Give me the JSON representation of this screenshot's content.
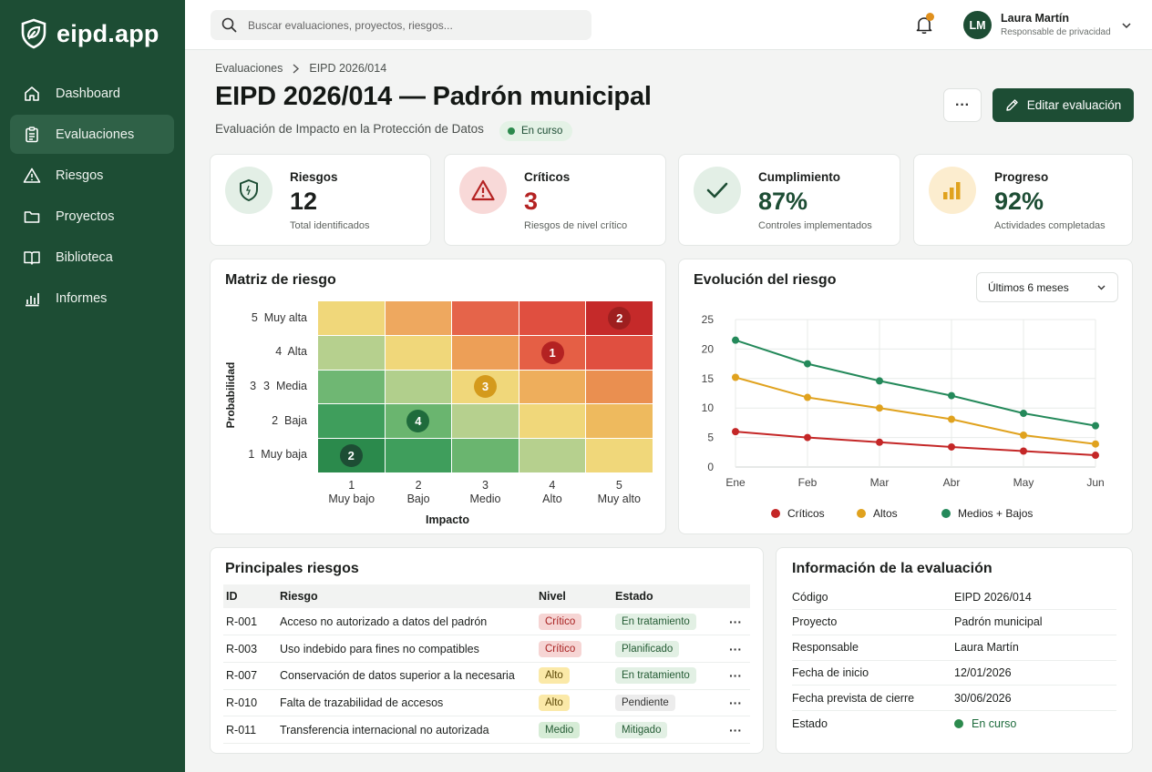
{
  "app": {
    "logo_text": "eipd.app"
  },
  "sidebar": {
    "items": [
      {
        "label": "Dashboard",
        "icon": "home-icon"
      },
      {
        "label": "Evaluaciones",
        "icon": "clipboard-icon",
        "active": true
      },
      {
        "label": "Riesgos",
        "icon": "warning-icon"
      },
      {
        "label": "Proyectos",
        "icon": "folder-icon"
      },
      {
        "label": "Biblioteca",
        "icon": "book-icon"
      },
      {
        "label": "Informes",
        "icon": "bar-chart-icon"
      }
    ]
  },
  "topbar": {
    "search_placeholder": "Buscar evaluaciones, proyectos, riesgos...",
    "user": {
      "initials": "LM",
      "name": "Laura Martín",
      "role": "Responsable de privacidad"
    }
  },
  "header": {
    "breadcrumb": [
      "Evaluaciones",
      "EIPD 2026/014"
    ],
    "title": "EIPD 2026/014 — Padrón municipal",
    "subtitle": "Evaluación de Impacto en la Protección de Datos",
    "status": "En curso",
    "more_label": "···",
    "edit_label": "Editar evaluación"
  },
  "kpis": [
    {
      "label": "Riesgos",
      "value": "12",
      "desc": "Total identificados",
      "icon": "shield-icon",
      "color": "#1d4d34",
      "bg": "#e3efe6"
    },
    {
      "label": "Críticos",
      "value": "3",
      "desc": "Riesgos de nivel crítico",
      "icon": "alert-triangle-icon",
      "color": "#b42222",
      "bg": "#f8d9d8"
    },
    {
      "label": "Cumplimiento",
      "value": "87%",
      "desc": "Controles implementados",
      "icon": "check-icon",
      "color": "#1d4d34",
      "bg": "#e3efe6"
    },
    {
      "label": "Progreso",
      "value": "92%",
      "desc": "Actividades completadas",
      "icon": "bar-chart-icon",
      "color": "#1d4d34",
      "bg": "#fcedcf"
    }
  ],
  "matrix": {
    "title": "Matriz de riesgo",
    "y_axis_label": "Probabilidad",
    "x_axis_label": "Impacto",
    "rows": [
      {
        "label": "5  Muy alta"
      },
      {
        "label": "4  Alta"
      },
      {
        "label": "3  Media",
        "prefix": "3"
      },
      {
        "label": "2  Baja"
      },
      {
        "label": "1  Muy baja"
      }
    ],
    "cols": [
      {
        "num": "1",
        "label": "Muy bajo"
      },
      {
        "num": "2",
        "label": "Bajo"
      },
      {
        "num": "3",
        "label": "Medio"
      },
      {
        "num": "4",
        "label": "Alto"
      },
      {
        "num": "5",
        "label": "Muy alto"
      }
    ],
    "colors": [
      [
        "#f0d77a",
        "#eea85f",
        "#e5644a",
        "#e04f40",
        "#c52a2a"
      ],
      [
        "#b6d08e",
        "#f0d77a",
        "#ed9f57",
        "#e55f45",
        "#e04f40"
      ],
      [
        "#6fb773",
        "#b1cf8c",
        "#f0d77a",
        "#eeae5c",
        "#ea8f50"
      ],
      [
        "#3f9e5c",
        "#6ab56f",
        "#b6d08e",
        "#f0d77a",
        "#eeba5e"
      ],
      [
        "#2b8a4c",
        "#3f9e5c",
        "#6ab56f",
        "#b6d08e",
        "#f0d77a"
      ]
    ],
    "markers": [
      {
        "row": 0,
        "col": 4,
        "value": "2",
        "color": "#9e1f1f"
      },
      {
        "row": 1,
        "col": 3,
        "value": "1",
        "color": "#b42222"
      },
      {
        "row": 2,
        "col": 2,
        "value": "3",
        "color": "#d49a1c"
      },
      {
        "row": 3,
        "col": 1,
        "value": "4",
        "color": "#1f6b3c"
      },
      {
        "row": 4,
        "col": 0,
        "value": "2",
        "color": "#1d4d34"
      }
    ]
  },
  "evolution": {
    "title": "Evolución del riesgo",
    "range_select": "Últimos 6 meses"
  },
  "chart_data": {
    "type": "line",
    "x": [
      "Ene",
      "Feb",
      "Mar",
      "Abr",
      "May",
      "Jun"
    ],
    "ylim": [
      0,
      25
    ],
    "yticks": [
      0,
      5,
      10,
      15,
      20,
      25
    ],
    "grid": true,
    "legend": "bottom",
    "series": [
      {
        "name": "Críticos",
        "color": "#c42727",
        "values": [
          6,
          5,
          4.2,
          3.4,
          2.7,
          2
        ]
      },
      {
        "name": "Altos",
        "color": "#e0a21e",
        "values": [
          15.2,
          11.8,
          10,
          8.1,
          5.4,
          3.9
        ]
      },
      {
        "name": "Medios + Bajos",
        "color": "#24895a",
        "values": [
          21.5,
          17.5,
          14.6,
          12.1,
          9.1,
          7
        ]
      }
    ]
  },
  "risks_table": {
    "title": "Principales riesgos",
    "columns": [
      "ID",
      "Riesgo",
      "Nivel",
      "Estado"
    ],
    "rows": [
      {
        "id": "R-001",
        "risk": "Acceso no autorizado a datos del padrón",
        "level": "Crítico",
        "level_class": "lvl-critico",
        "status": "En tratamiento",
        "status_class": "st-green"
      },
      {
        "id": "R-003",
        "risk": "Uso indebido para fines no compatibles",
        "level": "Crítico",
        "level_class": "lvl-critico",
        "status": "Planificado",
        "status_class": "st-green"
      },
      {
        "id": "R-007",
        "risk": "Conservación de datos superior a la necesaria",
        "level": "Alto",
        "level_class": "lvl-alto",
        "status": "En tratamiento",
        "status_class": "st-green"
      },
      {
        "id": "R-010",
        "risk": "Falta de trazabilidad de accesos",
        "level": "Alto",
        "level_class": "lvl-alto",
        "status": "Pendiente",
        "status_class": "st-gray"
      },
      {
        "id": "R-011",
        "risk": "Transferencia internacional no autorizada",
        "level": "Medio",
        "level_class": "lvl-medio",
        "status": "Mitigado",
        "status_class": "st-green"
      }
    ],
    "row_more": "···"
  },
  "info": {
    "title": "Información de la evaluación",
    "rows": [
      {
        "key": "Código",
        "value": "EIPD 2026/014"
      },
      {
        "key": "Proyecto",
        "value": "Padrón municipal"
      },
      {
        "key": "Responsable",
        "value": "Laura Martín"
      },
      {
        "key": "Fecha de inicio",
        "value": "12/01/2026"
      },
      {
        "key": "Fecha prevista de cierre",
        "value": "30/06/2026"
      },
      {
        "key": "Estado",
        "value": "En curso",
        "status": true
      }
    ]
  }
}
